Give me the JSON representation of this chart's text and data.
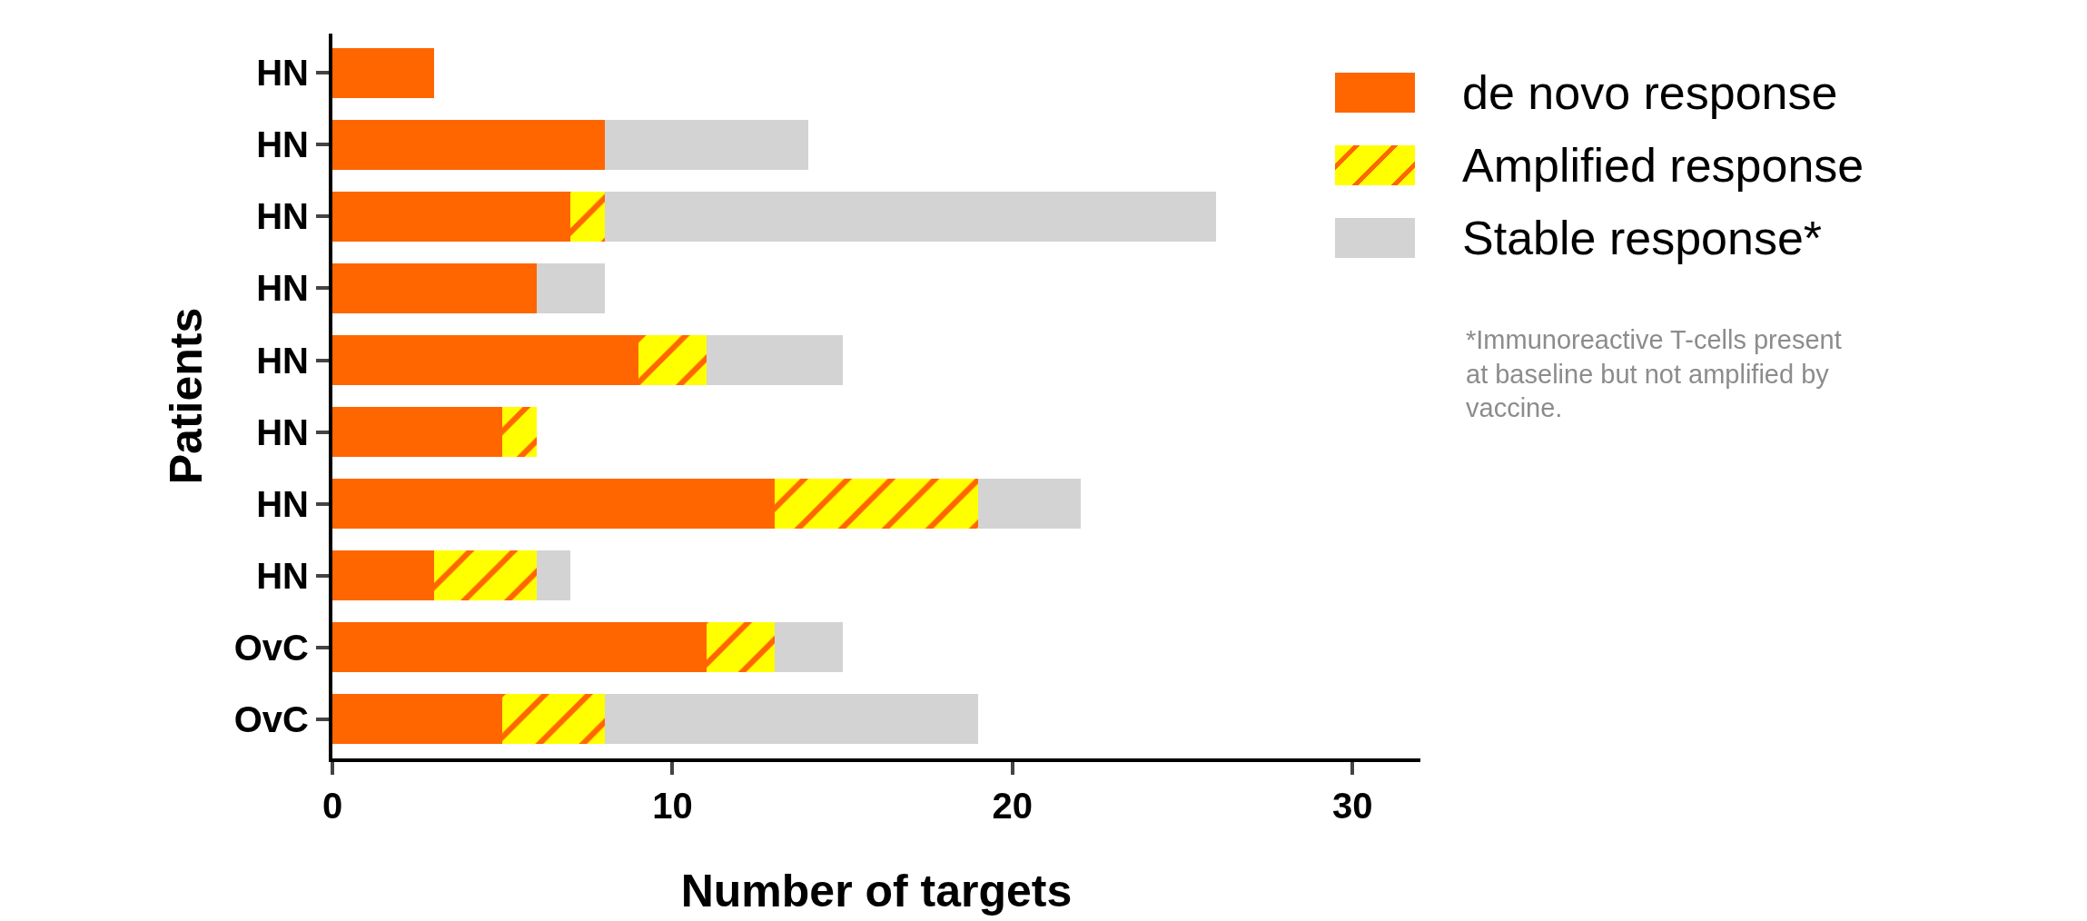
{
  "chart_data": {
    "type": "bar",
    "orientation": "horizontal",
    "stacked": true,
    "xlabel": "Number of targets",
    "ylabel": "Patients",
    "categories": [
      "HN",
      "HN",
      "HN",
      "HN",
      "HN",
      "HN",
      "HN",
      "HN",
      "OvC",
      "OvC"
    ],
    "series": [
      {
        "name": "de novo response",
        "color": "#ff6600",
        "values": [
          3,
          8,
          7,
          6,
          9,
          5,
          13,
          3,
          11,
          5
        ]
      },
      {
        "name": "Amplified response",
        "color": "#ffff00",
        "values": [
          0,
          0,
          1,
          0,
          2,
          1,
          6,
          3,
          2,
          3
        ]
      },
      {
        "name": "Stable response*",
        "color": "#d3d3d3",
        "values": [
          0,
          6,
          18,
          2,
          4,
          0,
          3,
          1,
          2,
          11
        ]
      }
    ],
    "xlim": [
      0,
      32
    ],
    "xticks": [
      0,
      10,
      20,
      30
    ],
    "grid": false,
    "legend": "top right",
    "annotations": [
      "*Immunoreactive T-cells present at baseline but not amplified by vaccine."
    ]
  }
}
